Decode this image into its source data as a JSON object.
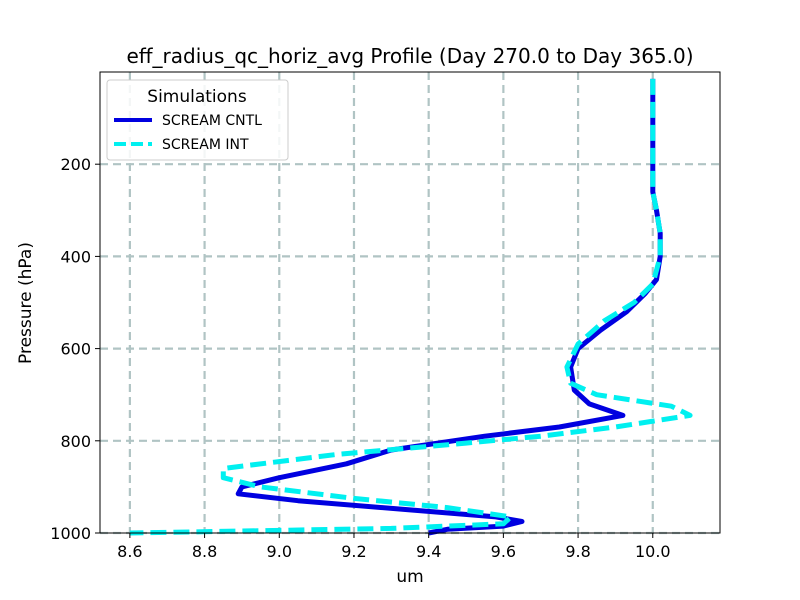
{
  "chart_data": {
    "type": "line",
    "title": "eff_radius_qc_horiz_avg Profile (Day 270.0 to Day 365.0)",
    "xlabel": "um",
    "ylabel": "Pressure (hPa)",
    "xlim": [
      8.52,
      10.18
    ],
    "ylim": [
      1000,
      0
    ],
    "y_inverted": true,
    "xticks": [
      8.6,
      8.8,
      9.0,
      9.2,
      9.4,
      9.6,
      9.8,
      10.0
    ],
    "xtick_labels": [
      "8.6",
      "8.8",
      "9.0",
      "9.2",
      "9.4",
      "9.6",
      "9.8",
      "10.0"
    ],
    "yticks": [
      200,
      400,
      600,
      800,
      1000
    ],
    "ytick_labels": [
      "200",
      "400",
      "600",
      "800",
      "1000"
    ],
    "grid": true,
    "legend": {
      "title": "Simulations",
      "placement": "upper-left"
    },
    "series": [
      {
        "name": "SCREAM CNTL",
        "color": "#0000e0",
        "line_style": "solid",
        "points": [
          [
            10.0,
            15
          ],
          [
            10.0,
            100
          ],
          [
            10.0,
            200
          ],
          [
            10.0,
            260
          ],
          [
            10.01,
            300
          ],
          [
            10.02,
            350
          ],
          [
            10.02,
            400
          ],
          [
            10.01,
            450
          ],
          [
            9.98,
            480
          ],
          [
            9.93,
            520
          ],
          [
            9.86,
            560
          ],
          [
            9.8,
            600
          ],
          [
            9.78,
            640
          ],
          [
            9.79,
            690
          ],
          [
            9.83,
            720
          ],
          [
            9.92,
            745
          ],
          [
            9.75,
            770
          ],
          [
            9.55,
            790
          ],
          [
            9.3,
            820
          ],
          [
            9.18,
            850
          ],
          [
            9.0,
            880
          ],
          [
            8.9,
            900
          ],
          [
            8.89,
            915
          ],
          [
            9.05,
            930
          ],
          [
            9.35,
            950
          ],
          [
            9.58,
            965
          ],
          [
            9.65,
            975
          ],
          [
            9.6,
            985
          ],
          [
            9.45,
            992
          ],
          [
            9.4,
            1000
          ]
        ]
      },
      {
        "name": "SCREAM INT",
        "color": "#00f0f0",
        "line_style": "dashed",
        "points": [
          [
            10.0,
            15
          ],
          [
            10.0,
            100
          ],
          [
            10.0,
            200
          ],
          [
            10.0,
            260
          ],
          [
            10.01,
            300
          ],
          [
            10.02,
            350
          ],
          [
            10.02,
            400
          ],
          [
            10.0,
            460
          ],
          [
            9.95,
            500
          ],
          [
            9.87,
            540
          ],
          [
            9.8,
            590
          ],
          [
            9.77,
            640
          ],
          [
            9.78,
            675
          ],
          [
            9.85,
            700
          ],
          [
            10.05,
            725
          ],
          [
            10.1,
            745
          ],
          [
            9.9,
            770
          ],
          [
            9.7,
            790
          ],
          [
            9.5,
            805
          ],
          [
            9.15,
            830
          ],
          [
            8.85,
            860
          ],
          [
            8.85,
            880
          ],
          [
            8.95,
            900
          ],
          [
            9.2,
            925
          ],
          [
            9.45,
            945
          ],
          [
            9.62,
            965
          ],
          [
            9.6,
            980
          ],
          [
            9.3,
            990
          ],
          [
            8.6,
            1000
          ]
        ]
      }
    ]
  }
}
